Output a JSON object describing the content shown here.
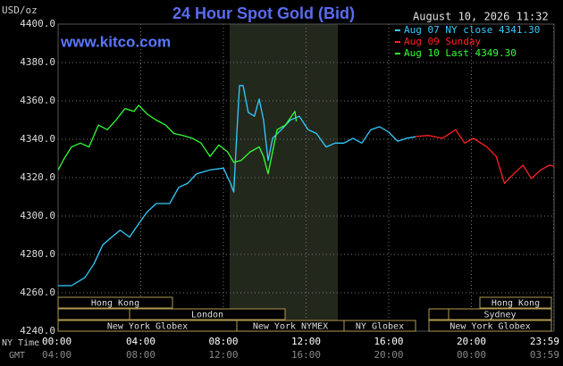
{
  "chart_data": {
    "type": "line",
    "title": "24 Hour Spot Gold (Bid)",
    "timestamp": "August 10, 2026 11:32",
    "y_label": "USD/oz",
    "watermark": "www.kitco.com",
    "xlim": [
      0,
      24
    ],
    "xticks": [
      {
        "value": 0,
        "label": "00:00"
      },
      {
        "value": 4,
        "label": "04:00"
      },
      {
        "value": 8,
        "label": "08:00"
      },
      {
        "value": 12,
        "label": "12:00"
      },
      {
        "value": 16,
        "label": "16:00"
      },
      {
        "value": 20,
        "label": "20:00"
      },
      {
        "value": 23.98,
        "label": "23:59"
      }
    ],
    "x_row_labels": [
      "NY Time",
      "GMT"
    ],
    "gmt_labels": [
      "04:00",
      "08:00",
      "12:00",
      "16:00",
      "20:00",
      "00:00",
      "03:59"
    ],
    "ylim": [
      4240,
      4400
    ],
    "yticks": [
      {
        "value": 4400,
        "label": "4400.0"
      },
      {
        "value": 4380,
        "label": "4380.0"
      },
      {
        "value": 4360,
        "label": "4360.0"
      },
      {
        "value": 4340,
        "label": "4340.0"
      },
      {
        "value": 4320,
        "label": "4320.0"
      },
      {
        "value": 4300,
        "label": "4300.0"
      },
      {
        "value": 4280,
        "label": "4280.0"
      },
      {
        "value": 4260,
        "label": "4260.0"
      },
      {
        "value": 4240,
        "label": "4240.0"
      }
    ],
    "grid": true,
    "sessions": [
      "Hong Kong",
      "Hong Kong",
      "London",
      "Sydney",
      "New York Globex",
      "New York NYMEX",
      "NY Globex",
      "New York Globex"
    ],
    "series": [
      {
        "name": "Aug 07 NY close 4341.30",
        "color": "#33ccff",
        "x": [
          0,
          0.65,
          1.3,
          1.73,
          2.16,
          2.6,
          3.0,
          3.46,
          3.9,
          4.3,
          4.75,
          5.4,
          5.84,
          6.27,
          6.7,
          7.35,
          8.0,
          8.34,
          8.5,
          8.65,
          8.78,
          8.95,
          9.2,
          9.5,
          9.73,
          9.94,
          10.16,
          10.38,
          10.8,
          11.24,
          11.67,
          12.1,
          12.5,
          12.97,
          13.4,
          13.83,
          14.27,
          14.7,
          15.13,
          15.56,
          16.0,
          16.43,
          16.86,
          17.3
        ],
        "values": [
          4263.7,
          4263.7,
          4268,
          4275,
          4285,
          4289,
          4292.6,
          4289,
          4296,
          4302,
          4306.5,
          4306.5,
          4315,
          4317,
          4322,
          4324,
          4325,
          4317,
          4312.5,
          4343,
          4368,
          4368,
          4354,
          4352,
          4361,
          4350,
          4329,
          4340.5,
          4345,
          4350,
          4352,
          4345,
          4343,
          4336,
          4338,
          4338,
          4340.5,
          4338,
          4345,
          4346.5,
          4343.7,
          4339,
          4340.5,
          4341.3
        ]
      },
      {
        "name": "Aug 09 Sunday",
        "color": "#ff2020",
        "x": [
          17.3,
          17.9,
          18.6,
          19.24,
          19.67,
          20.1,
          20.75,
          21.2,
          21.6,
          22.05,
          22.5,
          22.9,
          23.35,
          23.78,
          24
        ],
        "values": [
          4341.4,
          4342,
          4340.5,
          4345,
          4338,
          4340.5,
          4336,
          4331,
          4317,
          4322,
          4326.5,
          4319.5,
          4324,
          4326.5,
          4326
        ]
      },
      {
        "name": "Aug 10 Last 4349.30",
        "color": "#33ff33",
        "x": [
          0,
          0.3,
          0.65,
          1.08,
          1.5,
          1.95,
          2.38,
          2.8,
          3.24,
          3.67,
          3.9,
          4.32,
          4.75,
          5.2,
          5.6,
          6.05,
          6.5,
          6.92,
          7.35,
          7.78,
          8.2,
          8.5,
          8.86,
          9.3,
          9.73,
          9.94,
          10.16,
          10.38,
          10.6,
          11.0,
          11.46,
          11.53
        ],
        "values": [
          4324,
          4330,
          4336,
          4338,
          4336,
          4347.4,
          4345,
          4350,
          4356,
          4354.5,
          4357.7,
          4353,
          4350,
          4347.4,
          4343,
          4341.9,
          4340.5,
          4338,
          4331,
          4337,
          4333.5,
          4328,
          4329,
          4333.5,
          4336,
          4331,
          4322,
          4333.5,
          4345,
          4347.4,
          4354.5,
          4349.3
        ]
      }
    ]
  }
}
